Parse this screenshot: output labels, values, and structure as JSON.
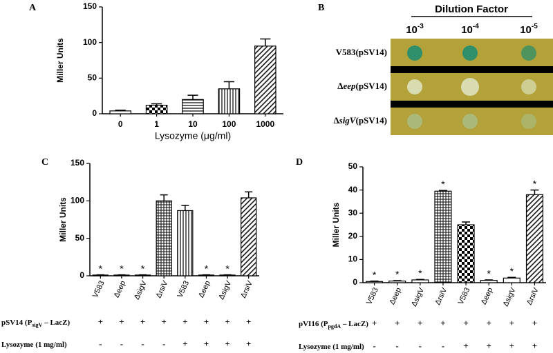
{
  "chart_data": [
    {
      "type": "bar",
      "panel": "A",
      "y_label": "Miller Units",
      "x_label": "Lysozyme (μg/ml)",
      "categories": [
        "0",
        "1",
        "10",
        "100",
        "1000"
      ],
      "values": [
        4,
        12,
        20,
        35,
        95
      ],
      "errors": [
        1,
        2,
        6,
        10,
        10
      ],
      "patterns": [
        "none",
        "checker",
        "horizontal",
        "vertical",
        "diagonal"
      ],
      "ylim": [
        0,
        150
      ],
      "yticks": [
        0,
        50,
        100,
        150
      ]
    },
    {
      "type": "bar",
      "panel": "C",
      "y_label": "Miller Units",
      "categories": [
        "V583",
        "Δeep",
        "ΔsigV",
        "ΔrsiV",
        "V583",
        "Δeep",
        "ΔsigV",
        "ΔrsiV"
      ],
      "values": [
        1,
        1,
        1,
        100,
        87,
        1,
        1,
        104
      ],
      "errors": [
        0.3,
        0.3,
        0.3,
        8,
        7,
        0.3,
        0.3,
        8
      ],
      "patterns": [
        "none",
        "none",
        "none",
        "grid",
        "vertical",
        "none",
        "none",
        "diagonal"
      ],
      "annotations": [
        "*",
        "*",
        "*",
        null,
        null,
        "*",
        "*",
        null
      ],
      "ylim": [
        0,
        150
      ],
      "yticks": [
        0,
        50,
        100,
        150
      ],
      "conditions": [
        {
          "label": [
            "pSV14 (P",
            "sigV",
            " – LacZ)"
          ],
          "marks": [
            "+",
            "+",
            "+",
            "+",
            "+",
            "+",
            "+",
            "+"
          ]
        },
        {
          "label": [
            "Lysozyme (1 mg/ml)"
          ],
          "marks": [
            "-",
            "-",
            "-",
            "-",
            "+",
            "+",
            "+",
            "+"
          ]
        }
      ]
    },
    {
      "type": "bar",
      "panel": "D",
      "y_label": "Miller Units",
      "categories": [
        "V583",
        "Δeep",
        "ΔsigV",
        "ΔrsiV",
        "V583",
        "Δeep",
        "ΔsigV",
        "ΔrsiV"
      ],
      "values": [
        0.5,
        0.7,
        1.2,
        39.5,
        25,
        1,
        2,
        38
      ],
      "errors": [
        0.2,
        0.2,
        0.2,
        0.3,
        1.2,
        0.2,
        0.3,
        2
      ],
      "patterns": [
        "none",
        "none",
        "none",
        "grid",
        "checker",
        "none",
        "none",
        "diagonal"
      ],
      "annotations": [
        "*",
        "*",
        "*",
        "*",
        null,
        "*",
        "*",
        "*"
      ],
      "ylim": [
        0,
        50
      ],
      "yticks": [
        0,
        10,
        20,
        30,
        40,
        50
      ],
      "conditions": [
        {
          "label": [
            "pVI16 (P",
            "pgdA",
            " – LacZ)"
          ],
          "marks": [
            "+",
            "+",
            "+",
            "+",
            "+",
            "+",
            "+",
            "+"
          ]
        },
        {
          "label": [
            "Lysozyme (1 mg/ml)"
          ],
          "marks": [
            "-",
            "-",
            "-",
            "-",
            "+",
            "+",
            "+",
            "+"
          ]
        }
      ]
    }
  ],
  "plates": {
    "panel": "B",
    "title": "Dilution Factor",
    "dilutions": [
      {
        "base": "10",
        "exp": "-3"
      },
      {
        "base": "10",
        "exp": "-4"
      },
      {
        "base": "10",
        "exp": "-5"
      }
    ],
    "strains": [
      [
        "V583(pSV14)"
      ],
      [
        "Δ",
        "eep",
        "(pSV14)"
      ],
      [
        "Δ",
        "sigV",
        "(pSV14)"
      ]
    ]
  }
}
